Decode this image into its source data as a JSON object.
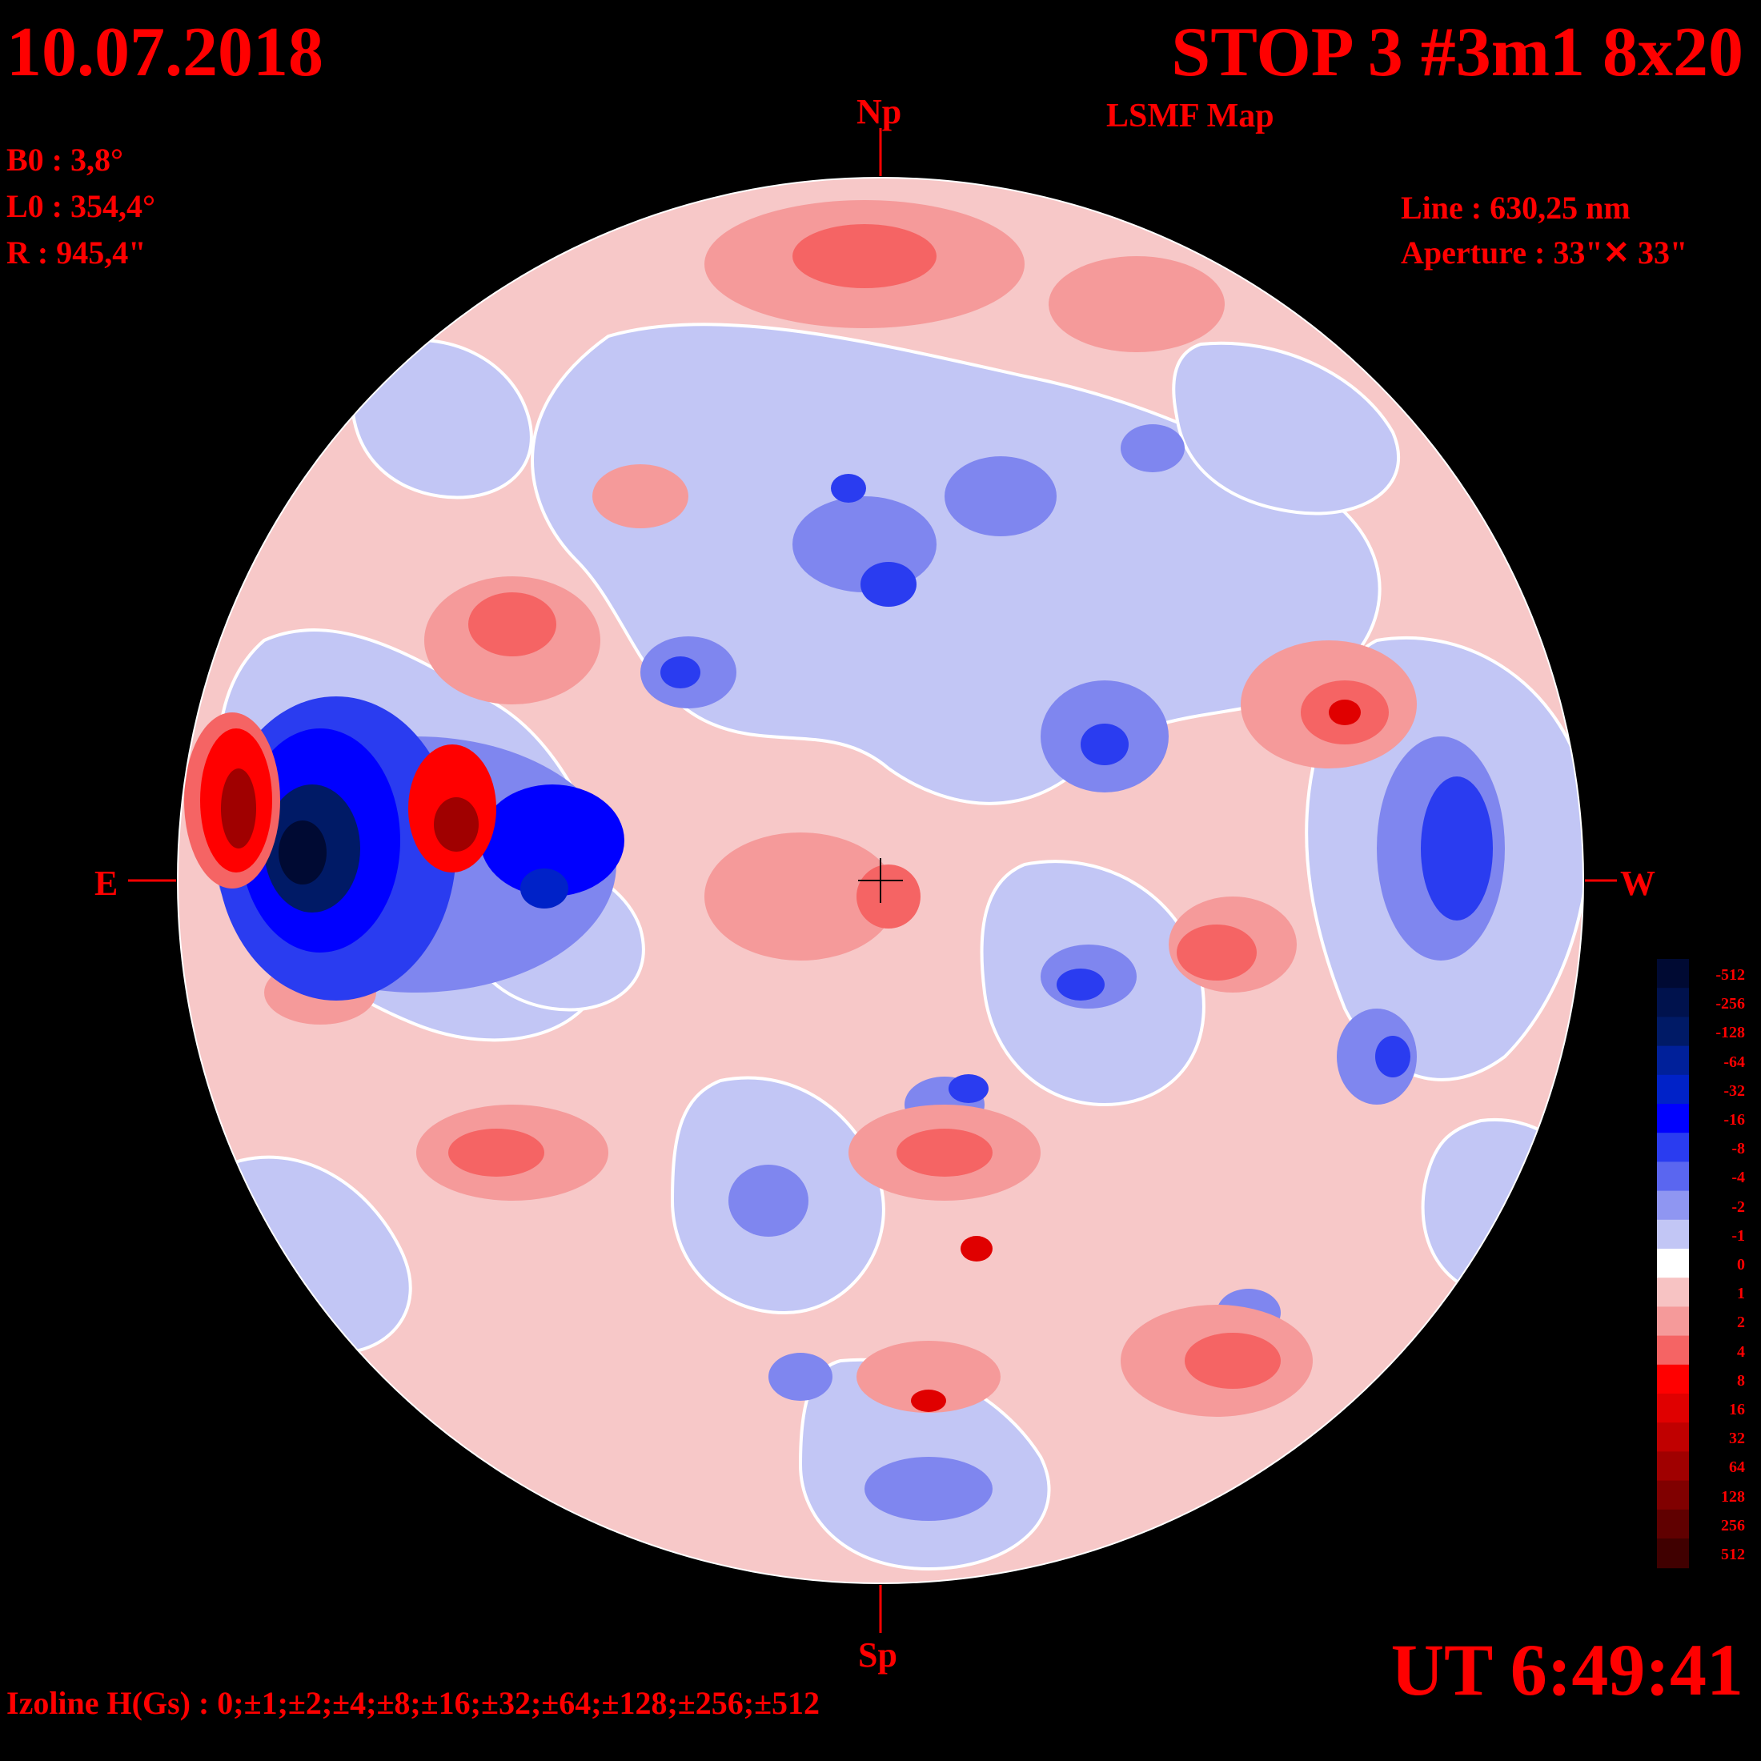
{
  "header": {
    "date": "10.07.2018",
    "title": "STOP 3 #3m1 8x20",
    "subtitle": "LSMF  Map"
  },
  "params": {
    "b0": "B0 : 3,8°",
    "l0": "L0 : 354,4°",
    "radius": "R  : 945,4\""
  },
  "instrument": {
    "line": "Line :  630,25 nm",
    "aperture": "Aperture : 33\"✕ 33\""
  },
  "directions": {
    "north": "Np",
    "south": "Sp",
    "east": "E",
    "west": "W"
  },
  "footer": {
    "ut": "UT 6:49:41",
    "izoline": "Izoline H(Gs) : 0;±1;±2;±4;±8;±16;±32;±64;±128;±256;±512"
  },
  "legend": {
    "labels": [
      "-512",
      "-256",
      "-128",
      "-64",
      "-32",
      "-16",
      "-8",
      "-4",
      "-2",
      "-1",
      "0",
      "1",
      "2",
      "4",
      "8",
      "16",
      "32",
      "64",
      "128",
      "256",
      "512"
    ],
    "colors": [
      "#000a33",
      "#00124d",
      "#001a66",
      "#00209a",
      "#0022c8",
      "#0000ff",
      "#2a3cf0",
      "#5a66f0",
      "#8f96f2",
      "#c2c6f5",
      "#ffffff",
      "#f7c3c3",
      "#f59a9a",
      "#f56464",
      "#ff0000",
      "#e00000",
      "#c00000",
      "#a00000",
      "#800000",
      "#600000",
      "#400000"
    ]
  },
  "colors": {
    "text": "#ff0000",
    "background": "#000000",
    "disk_base": "#f7c8c8",
    "negative_region": "#c2c6f5",
    "strong_negative": "#0000ff",
    "strong_positive": "#e00000"
  }
}
